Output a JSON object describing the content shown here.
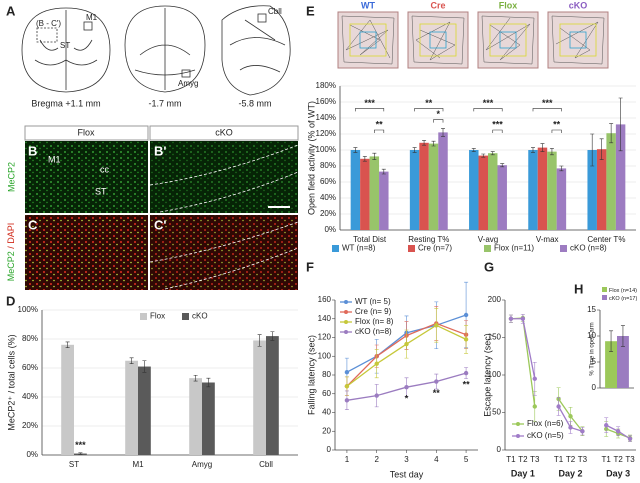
{
  "panels": [
    "A",
    "B",
    "B'",
    "C",
    "C'",
    "D",
    "E",
    "F",
    "G",
    "H"
  ],
  "atlas": {
    "sections": [
      "Bregma +1.1 mm",
      "-1.7 mm",
      "-5.8 mm"
    ],
    "labels": [
      "(B - C')",
      "M1",
      "ST",
      "Amyg",
      "Cbll"
    ]
  },
  "histology": {
    "columns": [
      "Flox",
      "cKO"
    ],
    "row_labels": [
      "MeCP2",
      "MeCP2",
      "/ DAPI"
    ],
    "regions": [
      "M1",
      "cc",
      "ST"
    ]
  },
  "open_field_tracks": [
    "WT",
    "Cre",
    "Flox",
    "cKO"
  ],
  "chart_data": [
    {
      "type": "bar",
      "ylabel": "MeCP2⁺ / total cells (%)",
      "categories": [
        "ST",
        "M1",
        "Amyg",
        "Cbll"
      ],
      "series": [
        {
          "name": "Flox",
          "color": "#c8c8c8",
          "values": [
            76,
            65,
            53,
            79
          ],
          "errors": [
            2,
            2,
            2,
            4
          ]
        },
        {
          "name": "cKO",
          "color": "#5a5a5a",
          "values": [
            1,
            61,
            50,
            82
          ],
          "errors": [
            0.5,
            4,
            3,
            3
          ]
        }
      ],
      "ylim": [
        0,
        100
      ],
      "yticks": [
        {
          "value": 0,
          "label": "0%"
        },
        {
          "value": 20,
          "label": "20%"
        },
        {
          "value": 40,
          "label": "40%"
        },
        {
          "value": 60,
          "label": "60%"
        },
        {
          "value": 80,
          "label": "80%"
        },
        {
          "value": 100,
          "label": "100%"
        }
      ],
      "grid": true,
      "annotations": [
        "***"
      ]
    },
    {
      "type": "bar",
      "ylabel": "Open field activity (% of WT)",
      "categories": [
        "Total Dist",
        "Resting T%",
        "V-avg",
        "V-max",
        "Center T%"
      ],
      "series": [
        {
          "name": "WT (n=8)",
          "color": "#3a9ad9",
          "values": [
            100,
            100,
            100,
            100,
            100
          ],
          "errors": [
            3,
            3,
            2,
            3,
            20
          ]
        },
        {
          "name": "Cre (n=7)",
          "color": "#d9534f",
          "values": [
            89,
            109,
            93,
            103,
            101
          ],
          "errors": [
            3,
            3,
            2,
            5,
            13
          ]
        },
        {
          "name": "Flox (n=11)",
          "color": "#98c46a",
          "values": [
            92,
            108,
            96,
            98,
            121
          ],
          "errors": [
            4,
            3,
            2,
            4,
            12
          ]
        },
        {
          "name": "cKO (n=8)",
          "color": "#9d7cc1",
          "values": [
            73,
            122,
            81,
            77,
            132
          ],
          "errors": [
            3,
            5,
            2,
            3,
            33
          ]
        }
      ],
      "ylim": [
        0,
        180
      ],
      "yticks": [
        {
          "value": 0,
          "label": "0%"
        },
        {
          "value": 20,
          "label": "20%"
        },
        {
          "value": 40,
          "label": "40%"
        },
        {
          "value": 60,
          "label": "60%"
        },
        {
          "value": 80,
          "label": "80%"
        },
        {
          "value": 100,
          "label": "100%"
        },
        {
          "value": 120,
          "label": "120%"
        },
        {
          "value": 140,
          "label": "140%"
        },
        {
          "value": 160,
          "label": "160%"
        },
        {
          "value": 180,
          "label": "180%"
        }
      ],
      "grid": true,
      "annotations": [
        "***",
        "**",
        "**",
        "*",
        "***",
        "***",
        "***",
        "**"
      ]
    },
    {
      "type": "line",
      "xlabel": "Test day",
      "ylabel": "Falling latency (sec)",
      "x": [
        1,
        2,
        3,
        4,
        5
      ],
      "series": [
        {
          "name": "WT (n= 5)",
          "color": "#5b8fd6",
          "values": [
            83,
            100,
            125,
            133,
            144
          ],
          "errors": [
            15,
            18,
            18,
            25,
            35
          ]
        },
        {
          "name": "Cre (n= 9)",
          "color": "#e06a5a",
          "values": [
            68,
            100,
            122,
            135,
            123
          ],
          "errors": [
            10,
            12,
            15,
            18,
            15
          ]
        },
        {
          "name": "Flox (n= 8)",
          "color": "#c6c83a",
          "values": [
            68,
            92,
            113,
            133,
            118
          ],
          "errors": [
            10,
            15,
            15,
            18,
            15
          ]
        },
        {
          "name": "cKO (n=8)",
          "color": "#9b7cc0",
          "values": [
            53,
            58,
            67,
            73,
            82
          ],
          "errors": [
            10,
            12,
            10,
            8,
            6
          ]
        }
      ],
      "xlim": [
        0.6,
        5.4
      ],
      "xticks": [
        1,
        2,
        3,
        4,
        5
      ],
      "ylim": [
        0,
        160
      ],
      "yticks": [
        0,
        20,
        40,
        60,
        80,
        100,
        120,
        140,
        160
      ],
      "grid": false,
      "annotations": [
        "*",
        "**",
        "**"
      ]
    },
    {
      "type": "line",
      "ylabel": "Escape latency (sec)",
      "categories": [
        "T1",
        "T2",
        "T3",
        null,
        "T1",
        "T2",
        "T3",
        null,
        "T1",
        "T2",
        "T3"
      ],
      "day_labels": [
        "Day 1",
        "Day 2",
        "Day 3"
      ],
      "series": [
        {
          "name": "Flox (n=6)",
          "color": "#9cc85a",
          "values": [
            175,
            176,
            58,
            null,
            68,
            45,
            25,
            null,
            28,
            22,
            16
          ],
          "errors": [
            5,
            5,
            20,
            null,
            15,
            12,
            6,
            null,
            10,
            6,
            4
          ]
        },
        {
          "name": "cKO (n=5)",
          "color": "#a07cc8",
          "values": [
            175,
            175,
            95,
            null,
            58,
            30,
            25,
            null,
            33,
            25,
            15
          ],
          "errors": [
            5,
            6,
            22,
            null,
            12,
            8,
            5,
            null,
            10,
            6,
            4
          ]
        }
      ],
      "ylim": [
        0,
        200
      ],
      "yticks": [
        0,
        50,
        100,
        150,
        200
      ],
      "grid": false
    },
    {
      "type": "bar",
      "ylabel": "% Time in open arm",
      "categories": [
        null
      ],
      "series": [
        {
          "name": "Flox (n=14)",
          "color": "#9cc85a",
          "values": [
            9
          ],
          "errors": [
            2
          ]
        },
        {
          "name": "cKO (n=17)",
          "color": "#9b7cc0",
          "values": [
            10
          ],
          "errors": [
            2
          ]
        }
      ],
      "ylim": [
        0,
        15
      ],
      "yticks": [
        0,
        5,
        10,
        15
      ],
      "grid": false
    }
  ]
}
